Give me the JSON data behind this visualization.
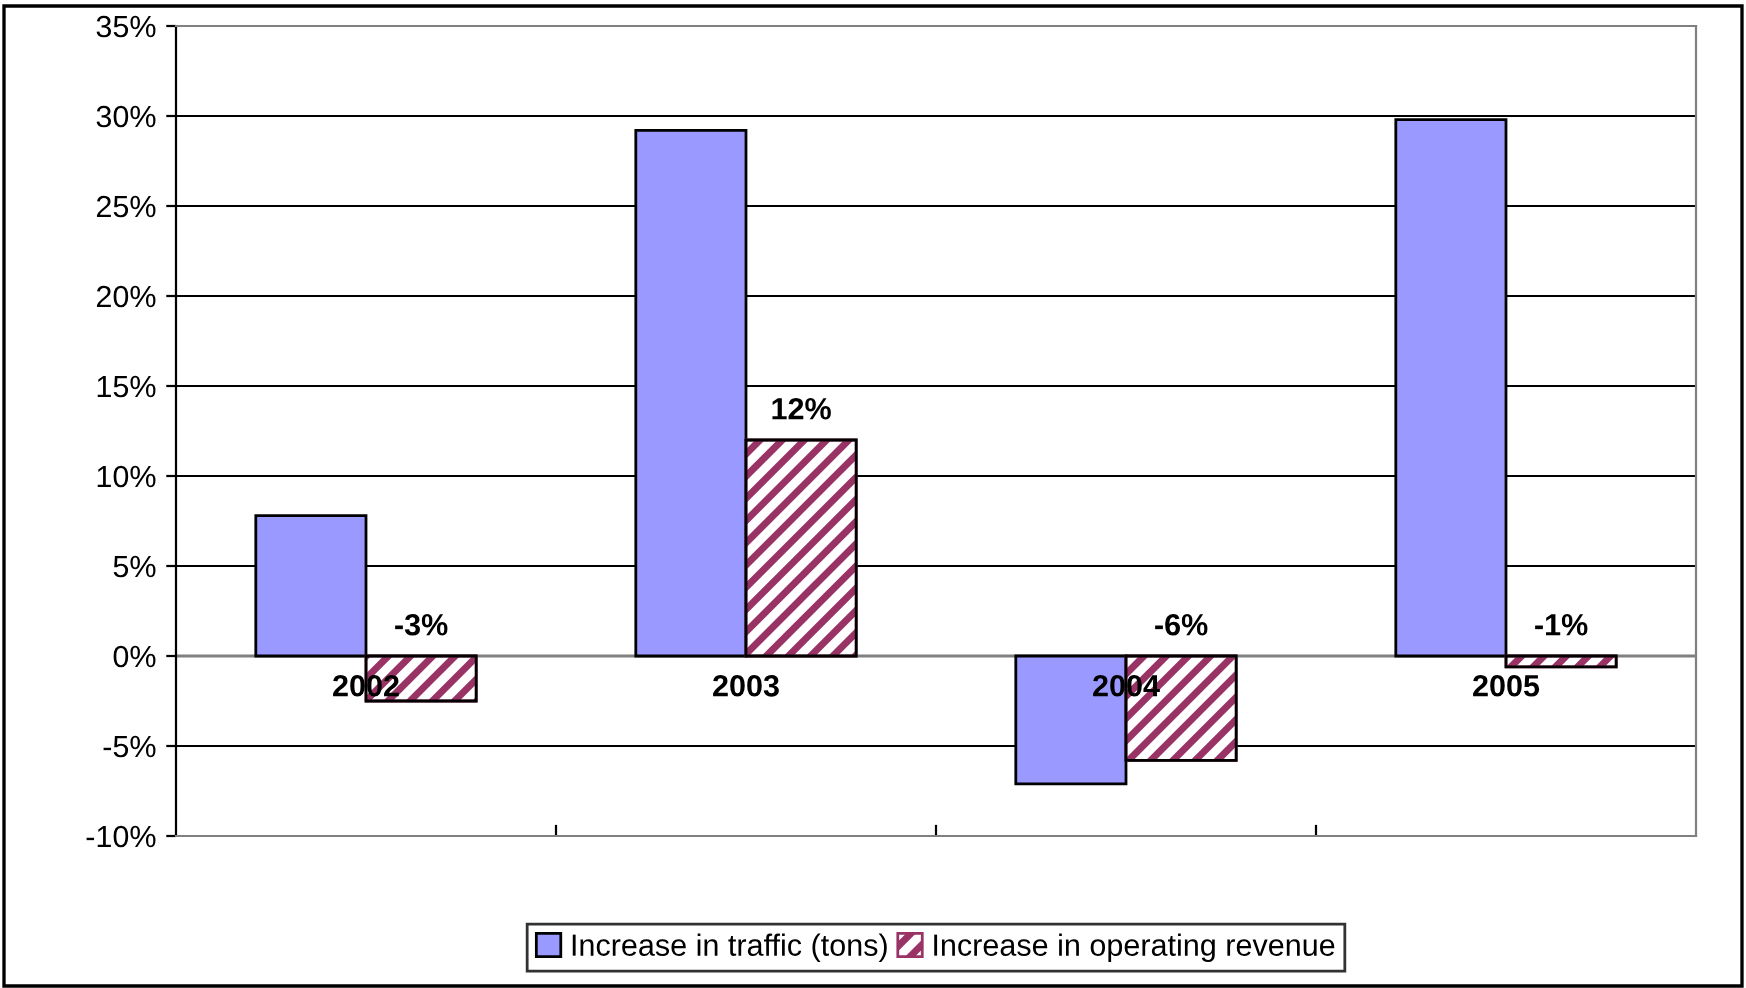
{
  "chart_data": {
    "type": "bar",
    "categories": [
      "2002",
      "2003",
      "2004",
      "2005"
    ],
    "series": [
      {
        "name": "Increase in traffic (tons)",
        "color": "#9999ff",
        "values": [
          7.8,
          29.2,
          -7.1,
          29.8
        ]
      },
      {
        "name": "Increase in operating revenue",
        "color": "#993366",
        "values": [
          -2.5,
          12,
          -5.8,
          -0.6
        ],
        "value_labels": [
          "-3%",
          "12%",
          "-6%",
          "-1%"
        ]
      }
    ],
    "ylim": [
      -10,
      35
    ],
    "yticks": [
      {
        "value": -10,
        "label": "-10%"
      },
      {
        "value": -5,
        "label": "-5%"
      },
      {
        "value": 0,
        "label": "0%"
      },
      {
        "value": 5,
        "label": "5%"
      },
      {
        "value": 10,
        "label": "10%"
      },
      {
        "value": 15,
        "label": "15%"
      },
      {
        "value": 20,
        "label": "20%"
      },
      {
        "value": 25,
        "label": "25%"
      },
      {
        "value": 30,
        "label": "30%"
      },
      {
        "value": 35,
        "label": "35%"
      }
    ],
    "grid": "y",
    "legend": "bottom"
  }
}
